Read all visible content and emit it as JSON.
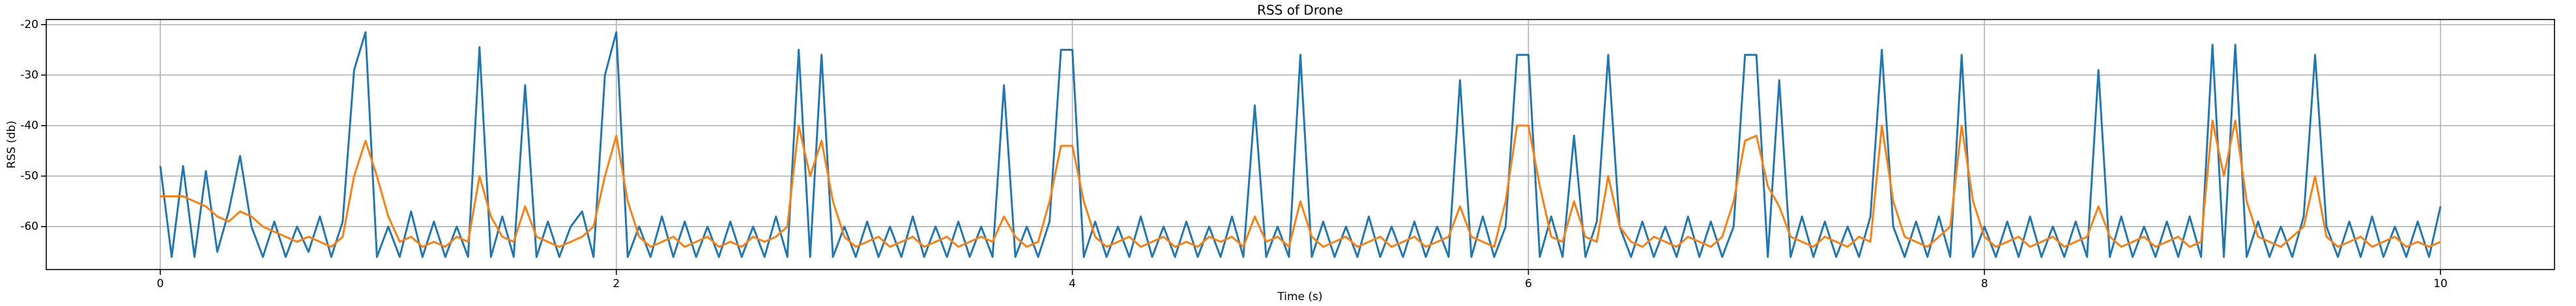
{
  "chart_data": {
    "type": "line",
    "title": "RSS of Drone",
    "xlabel": "Time (s)",
    "ylabel": "RSS (db)",
    "x": [
      0,
      0.05,
      0.1,
      0.15,
      0.2,
      0.25,
      0.3,
      0.35,
      0.4,
      0.45,
      0.5,
      0.55,
      0.6,
      0.65,
      0.7,
      0.75,
      0.8,
      0.85,
      0.9,
      0.95,
      1,
      1.05,
      1.1,
      1.15,
      1.2,
      1.25,
      1.3,
      1.35,
      1.4,
      1.45,
      1.5,
      1.55,
      1.6,
      1.65,
      1.7,
      1.75,
      1.8,
      1.85,
      1.9,
      1.95,
      2,
      2.05,
      2.1,
      2.15,
      2.2,
      2.25,
      2.3,
      2.35,
      2.4,
      2.45,
      2.5,
      2.55,
      2.6,
      2.65,
      2.7,
      2.75,
      2.8,
      2.85,
      2.9,
      2.95,
      3,
      3.05,
      3.1,
      3.15,
      3.2,
      3.25,
      3.3,
      3.35,
      3.4,
      3.45,
      3.5,
      3.55,
      3.6,
      3.65,
      3.7,
      3.75,
      3.8,
      3.85,
      3.9,
      3.95,
      4,
      4.05,
      4.1,
      4.15,
      4.2,
      4.25,
      4.3,
      4.35,
      4.4,
      4.45,
      4.5,
      4.55,
      4.6,
      4.65,
      4.7,
      4.75,
      4.8,
      4.85,
      4.9,
      4.95,
      5,
      5.05,
      5.1,
      5.15,
      5.2,
      5.25,
      5.3,
      5.35,
      5.4,
      5.45,
      5.5,
      5.55,
      5.6,
      5.65,
      5.7,
      5.75,
      5.8,
      5.85,
      5.9,
      5.95,
      6,
      6.05,
      6.1,
      6.15,
      6.2,
      6.25,
      6.3,
      6.35,
      6.4,
      6.45,
      6.5,
      6.55,
      6.6,
      6.65,
      6.7,
      6.75,
      6.8,
      6.85,
      6.9,
      6.95,
      7,
      7.05,
      7.1,
      7.15,
      7.2,
      7.25,
      7.3,
      7.35,
      7.4,
      7.45,
      7.5,
      7.55,
      7.6,
      7.65,
      7.7,
      7.75,
      7.8,
      7.85,
      7.9,
      7.95,
      8,
      8.05,
      8.1,
      8.15,
      8.2,
      8.25,
      8.3,
      8.35,
      8.4,
      8.45,
      8.5,
      8.55,
      8.6,
      8.65,
      8.7,
      8.75,
      8.8,
      8.85,
      8.9,
      8.95,
      9,
      9.05,
      9.1,
      9.15,
      9.2,
      9.25,
      9.3,
      9.35,
      9.4,
      9.45,
      9.5,
      9.55,
      9.6,
      9.65,
      9.7,
      9.75,
      9.8,
      9.85,
      9.9,
      9.95,
      10
    ],
    "series": [
      {
        "color": "#1f77b4",
        "values": [
          -48,
          -66,
          -48,
          -66,
          -49,
          -65,
          -57,
          -46,
          -60,
          -66,
          -59,
          -66,
          -60,
          -65,
          -58,
          -66,
          -59,
          -29,
          -21.5,
          -66,
          -60,
          -66,
          -57,
          -66,
          -59,
          -66,
          -60,
          -66,
          -24.5,
          -66,
          -58,
          -66,
          -32,
          -66,
          -59,
          -66,
          -60,
          -57,
          -66,
          -30,
          -21.5,
          -66,
          -60,
          -66,
          -58,
          -66,
          -59,
          -66,
          -60,
          -66,
          -59,
          -66,
          -60,
          -66,
          -58,
          -66,
          -25,
          -66,
          -26,
          -66,
          -60,
          -66,
          -59,
          -66,
          -60,
          -66,
          -58,
          -66,
          -60,
          -66,
          -59,
          -66,
          -60,
          -66,
          -32,
          -66,
          -60,
          -66,
          -59,
          -25,
          -25,
          -66,
          -59,
          -66,
          -60,
          -66,
          -58,
          -66,
          -60,
          -66,
          -59,
          -66,
          -60,
          -66,
          -58,
          -66,
          -36,
          -66,
          -60,
          -66,
          -26,
          -66,
          -59,
          -66,
          -60,
          -66,
          -58,
          -66,
          -60,
          -66,
          -59,
          -66,
          -60,
          -66,
          -31,
          -66,
          -58,
          -66,
          -60,
          -26,
          -26,
          -66,
          -58,
          -66,
          -42,
          -66,
          -59,
          -26,
          -60,
          -66,
          -59,
          -66,
          -60,
          -66,
          -58,
          -66,
          -59,
          -66,
          -60,
          -26,
          -26,
          -66,
          -31,
          -66,
          -58,
          -66,
          -59,
          -66,
          -60,
          -66,
          -58,
          -25,
          -60,
          -66,
          -59,
          -66,
          -58,
          -66,
          -26,
          -66,
          -60,
          -66,
          -59,
          -66,
          -58,
          -66,
          -60,
          -66,
          -59,
          -66,
          -29,
          -66,
          -58,
          -66,
          -60,
          -66,
          -59,
          -66,
          -58,
          -66,
          -24,
          -66,
          -24,
          -66,
          -59,
          -66,
          -60,
          -66,
          -58,
          -26,
          -60,
          -66,
          -59,
          -66,
          -58,
          -66,
          -60,
          -66,
          -59,
          -66,
          -56
        ]
      },
      {
        "color": "#ff7f0e",
        "values": [
          -54,
          -54,
          -54,
          -55,
          -56,
          -58,
          -59,
          -57,
          -58,
          -60,
          -61,
          -62,
          -63,
          -62,
          -63,
          -64,
          -62,
          -50,
          -43,
          -50,
          -58,
          -63,
          -62,
          -64,
          -63,
          -64,
          -62,
          -63,
          -50,
          -58,
          -62,
          -63,
          -56,
          -62,
          -63,
          -64,
          -63,
          -62,
          -60,
          -50,
          -42,
          -55,
          -62,
          -64,
          -63,
          -62,
          -64,
          -63,
          -62,
          -64,
          -63,
          -64,
          -62,
          -63,
          -62,
          -60,
          -40,
          -50,
          -43,
          -55,
          -62,
          -64,
          -63,
          -62,
          -64,
          -63,
          -62,
          -64,
          -63,
          -62,
          -64,
          -63,
          -62,
          -63,
          -58,
          -62,
          -64,
          -63,
          -55,
          -44,
          -44,
          -55,
          -62,
          -64,
          -63,
          -62,
          -64,
          -63,
          -62,
          -64,
          -63,
          -64,
          -62,
          -63,
          -62,
          -64,
          -58,
          -63,
          -62,
          -64,
          -55,
          -62,
          -64,
          -63,
          -62,
          -64,
          -63,
          -62,
          -64,
          -63,
          -62,
          -64,
          -63,
          -62,
          -56,
          -62,
          -63,
          -64,
          -55,
          -40,
          -40,
          -52,
          -62,
          -63,
          -55,
          -62,
          -63,
          -50,
          -60,
          -63,
          -64,
          -62,
          -63,
          -64,
          -62,
          -63,
          -64,
          -62,
          -55,
          -43,
          -42,
          -52,
          -56,
          -62,
          -63,
          -64,
          -62,
          -63,
          -64,
          -62,
          -63,
          -40,
          -55,
          -62,
          -63,
          -64,
          -62,
          -60,
          -40,
          -55,
          -62,
          -64,
          -63,
          -62,
          -64,
          -63,
          -62,
          -64,
          -63,
          -62,
          -56,
          -62,
          -64,
          -63,
          -62,
          -64,
          -63,
          -62,
          -64,
          -63,
          -39,
          -50,
          -39,
          -55,
          -62,
          -63,
          -64,
          -62,
          -60,
          -50,
          -62,
          -64,
          -63,
          -62,
          -64,
          -63,
          -62,
          -64,
          -63,
          -64,
          -63
        ]
      }
    ],
    "xlim": [
      -0.5,
      10.5
    ],
    "xticks": [
      0,
      2,
      4,
      6,
      8,
      10
    ],
    "ylim": [
      -68.5,
      -19
    ],
    "yticks": [
      -60,
      -50,
      -40,
      -30,
      -20
    ],
    "grid": true
  }
}
